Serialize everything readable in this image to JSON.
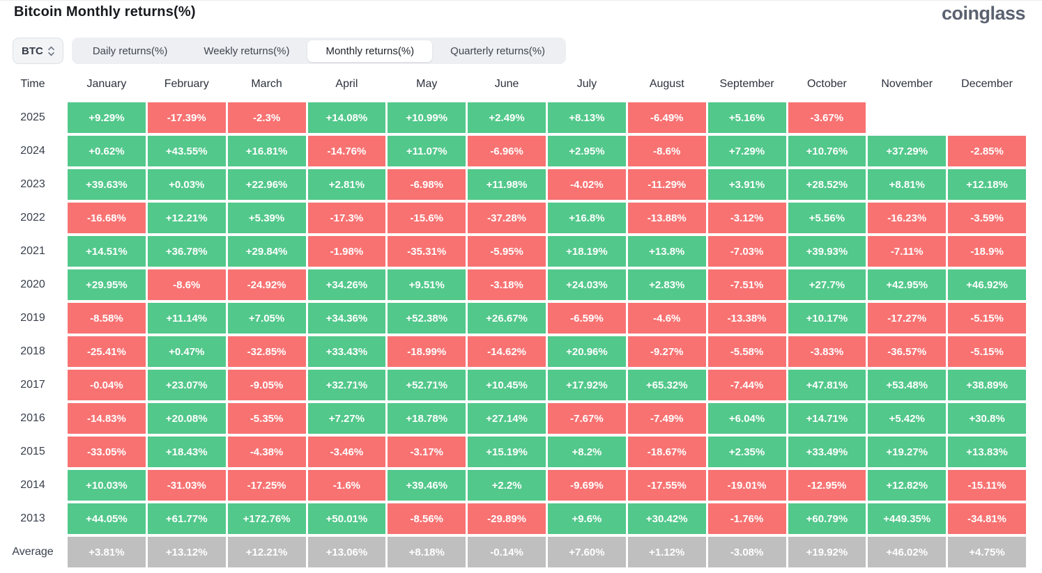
{
  "header": {
    "title": "Bitcoin Monthly returns(%)",
    "brand": "coinglass"
  },
  "controls": {
    "coin_selector": "BTC",
    "tabs": [
      {
        "label": "Daily returns(%)",
        "active": false
      },
      {
        "label": "Weekly returns(%)",
        "active": false
      },
      {
        "label": "Monthly returns(%)",
        "active": true
      },
      {
        "label": "Quarterly returns(%)",
        "active": false
      }
    ]
  },
  "colors": {
    "positive": "#52c88b",
    "negative": "#f87272",
    "average": "#bfbfbf",
    "cell_text": "#ffffff"
  },
  "chart_data": {
    "type": "heatmap",
    "title": "Bitcoin Monthly returns(%)",
    "columns": [
      "Time",
      "January",
      "February",
      "March",
      "April",
      "May",
      "June",
      "July",
      "August",
      "September",
      "October",
      "November",
      "December"
    ],
    "rows": [
      {
        "year": "2025",
        "values": [
          "+9.29%",
          "-17.39%",
          "-2.3%",
          "+14.08%",
          "+10.99%",
          "+2.49%",
          "+8.13%",
          "-6.49%",
          "+5.16%",
          "-3.67%",
          "",
          ""
        ]
      },
      {
        "year": "2024",
        "values": [
          "+0.62%",
          "+43.55%",
          "+16.81%",
          "-14.76%",
          "+11.07%",
          "-6.96%",
          "+2.95%",
          "-8.6%",
          "+7.29%",
          "+10.76%",
          "+37.29%",
          "-2.85%"
        ]
      },
      {
        "year": "2023",
        "values": [
          "+39.63%",
          "+0.03%",
          "+22.96%",
          "+2.81%",
          "-6.98%",
          "+11.98%",
          "-4.02%",
          "-11.29%",
          "+3.91%",
          "+28.52%",
          "+8.81%",
          "+12.18%"
        ]
      },
      {
        "year": "2022",
        "values": [
          "-16.68%",
          "+12.21%",
          "+5.39%",
          "-17.3%",
          "-15.6%",
          "-37.28%",
          "+16.8%",
          "-13.88%",
          "-3.12%",
          "+5.56%",
          "-16.23%",
          "-3.59%"
        ]
      },
      {
        "year": "2021",
        "values": [
          "+14.51%",
          "+36.78%",
          "+29.84%",
          "-1.98%",
          "-35.31%",
          "-5.95%",
          "+18.19%",
          "+13.8%",
          "-7.03%",
          "+39.93%",
          "-7.11%",
          "-18.9%"
        ]
      },
      {
        "year": "2020",
        "values": [
          "+29.95%",
          "-8.6%",
          "-24.92%",
          "+34.26%",
          "+9.51%",
          "-3.18%",
          "+24.03%",
          "+2.83%",
          "-7.51%",
          "+27.7%",
          "+42.95%",
          "+46.92%"
        ]
      },
      {
        "year": "2019",
        "values": [
          "-8.58%",
          "+11.14%",
          "+7.05%",
          "+34.36%",
          "+52.38%",
          "+26.67%",
          "-6.59%",
          "-4.6%",
          "-13.38%",
          "+10.17%",
          "-17.27%",
          "-5.15%"
        ]
      },
      {
        "year": "2018",
        "values": [
          "-25.41%",
          "+0.47%",
          "-32.85%",
          "+33.43%",
          "-18.99%",
          "-14.62%",
          "+20.96%",
          "-9.27%",
          "-5.58%",
          "-3.83%",
          "-36.57%",
          "-5.15%"
        ]
      },
      {
        "year": "2017",
        "values": [
          "-0.04%",
          "+23.07%",
          "-9.05%",
          "+32.71%",
          "+52.71%",
          "+10.45%",
          "+17.92%",
          "+65.32%",
          "-7.44%",
          "+47.81%",
          "+53.48%",
          "+38.89%"
        ]
      },
      {
        "year": "2016",
        "values": [
          "-14.83%",
          "+20.08%",
          "-5.35%",
          "+7.27%",
          "+18.78%",
          "+27.14%",
          "-7.67%",
          "-7.49%",
          "+6.04%",
          "+14.71%",
          "+5.42%",
          "+30.8%"
        ]
      },
      {
        "year": "2015",
        "values": [
          "-33.05%",
          "+18.43%",
          "-4.38%",
          "-3.46%",
          "-3.17%",
          "+15.19%",
          "+8.2%",
          "-18.67%",
          "+2.35%",
          "+33.49%",
          "+19.27%",
          "+13.83%"
        ]
      },
      {
        "year": "2014",
        "values": [
          "+10.03%",
          "-31.03%",
          "-17.25%",
          "-1.6%",
          "+39.46%",
          "+2.2%",
          "-9.69%",
          "-17.55%",
          "-19.01%",
          "-12.95%",
          "+12.82%",
          "-15.11%"
        ]
      },
      {
        "year": "2013",
        "values": [
          "+44.05%",
          "+61.77%",
          "+172.76%",
          "+50.01%",
          "-8.56%",
          "-29.89%",
          "+9.6%",
          "+30.42%",
          "-1.76%",
          "+60.79%",
          "+449.35%",
          "-34.81%"
        ]
      },
      {
        "year": "Average",
        "is_average": true,
        "values": [
          "+3.81%",
          "+13.12%",
          "+12.21%",
          "+13.06%",
          "+8.18%",
          "-0.14%",
          "+7.60%",
          "+1.12%",
          "-3.08%",
          "+19.92%",
          "+46.02%",
          "+4.75%"
        ]
      }
    ]
  }
}
